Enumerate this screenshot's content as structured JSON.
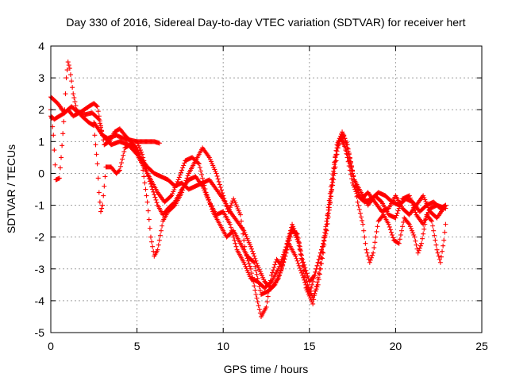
{
  "chart_data": {
    "type": "scatter",
    "title": "Day 330 of 2016, Sidereal Day-to-day VTEC variation (SDTVAR) for receiver hert",
    "xlabel": "GPS time / hours",
    "ylabel": "SDTVAR / TECUs",
    "xlim": [
      0,
      25
    ],
    "ylim": [
      -5,
      4
    ],
    "xticks": [
      0,
      5,
      10,
      15,
      20,
      25
    ],
    "yticks": [
      -5,
      -4,
      -3,
      -2,
      -1,
      0,
      1,
      2,
      3,
      4
    ],
    "grid": true,
    "marker": "+",
    "color": "#ff0000",
    "series": [
      {
        "name": "trace-1",
        "points": [
          [
            0.0,
            2.4
          ],
          [
            0.4,
            2.2
          ],
          [
            0.8,
            1.9
          ],
          [
            1.2,
            2.1
          ],
          [
            1.6,
            1.9
          ],
          [
            2.0,
            1.85
          ],
          [
            2.4,
            1.9
          ],
          [
            2.8,
            1.7
          ],
          [
            3.0,
            1.2
          ],
          [
            3.3,
            1.1
          ],
          [
            3.8,
            1.2
          ],
          [
            4.2,
            1.1
          ],
          [
            4.6,
            1.05
          ],
          [
            5.0,
            1.0
          ],
          [
            5.5,
            1.0
          ],
          [
            6.0,
            1.0
          ],
          [
            6.3,
            0.95
          ]
        ]
      },
      {
        "name": "trace-2",
        "points": [
          [
            0.0,
            1.8
          ],
          [
            0.2,
            1.7
          ],
          [
            0.5,
            1.8
          ],
          [
            0.8,
            1.9
          ],
          [
            1.0,
            2.0
          ],
          [
            1.3,
            1.8
          ],
          [
            1.8,
            1.95
          ],
          [
            2.2,
            2.1
          ],
          [
            2.5,
            2.2
          ],
          [
            2.7,
            2.1
          ],
          [
            2.9,
            1.5
          ],
          [
            3.1,
            0.9
          ],
          [
            3.4,
            1.0
          ],
          [
            3.7,
            1.3
          ],
          [
            4.0,
            1.4
          ],
          [
            4.3,
            1.2
          ],
          [
            4.8,
            0.9
          ],
          [
            5.2,
            0.5
          ],
          [
            5.6,
            0.2
          ],
          [
            6.0,
            0.0
          ],
          [
            6.4,
            -0.1
          ],
          [
            6.8,
            -0.2
          ],
          [
            7.2,
            -0.4
          ],
          [
            7.6,
            -0.3
          ],
          [
            8.0,
            -0.5
          ],
          [
            8.4,
            -0.4
          ],
          [
            8.8,
            -0.3
          ],
          [
            9.2,
            -0.2
          ],
          [
            9.6,
            -0.5
          ],
          [
            10.0,
            -0.8
          ],
          [
            10.4,
            -1.2
          ],
          [
            10.8,
            -1.5
          ],
          [
            11.2,
            -1.8
          ],
          [
            11.6,
            -2.3
          ],
          [
            12.0,
            -2.9
          ],
          [
            12.4,
            -3.4
          ],
          [
            12.8,
            -3.6
          ],
          [
            13.2,
            -3.3
          ],
          [
            13.6,
            -2.6
          ],
          [
            14.0,
            -1.8
          ],
          [
            14.3,
            -1.9
          ],
          [
            14.6,
            -2.7
          ],
          [
            15.0,
            -3.4
          ],
          [
            15.3,
            -3.2
          ],
          [
            15.6,
            -2.6
          ],
          [
            16.0,
            -1.8
          ],
          [
            16.3,
            -0.5
          ],
          [
            16.6,
            0.8
          ],
          [
            16.9,
            1.2
          ],
          [
            17.2,
            0.5
          ],
          [
            17.5,
            -0.3
          ],
          [
            17.8,
            -0.7
          ],
          [
            18.2,
            -0.9
          ],
          [
            18.6,
            -0.8
          ],
          [
            19.0,
            -0.6
          ],
          [
            19.4,
            -0.7
          ],
          [
            19.8,
            -0.9
          ],
          [
            20.2,
            -1.0
          ],
          [
            20.6,
            -0.8
          ],
          [
            21.0,
            -0.9
          ],
          [
            21.4,
            -1.2
          ],
          [
            21.8,
            -1.0
          ],
          [
            22.2,
            -0.9
          ],
          [
            22.6,
            -1.1
          ],
          [
            22.9,
            -1.0
          ]
        ]
      },
      {
        "name": "trace-3",
        "points": [
          [
            0.0,
            2.0
          ],
          [
            0.15,
            1.2
          ],
          [
            0.3,
            -0.2
          ],
          [
            0.5,
            -0.15
          ],
          [
            0.6,
            0.5
          ],
          [
            0.8,
            2.0
          ],
          [
            0.9,
            3.0
          ],
          [
            1.0,
            3.5
          ],
          [
            1.1,
            3.3
          ],
          [
            1.3,
            2.5
          ],
          [
            1.5,
            2.0
          ],
          [
            1.8,
            1.8
          ],
          [
            2.2,
            1.6
          ],
          [
            2.5,
            1.5
          ],
          [
            2.7,
            0.3
          ],
          [
            2.8,
            -0.6
          ],
          [
            2.9,
            -1.2
          ],
          [
            3.0,
            -1.0
          ],
          [
            3.2,
            0.2
          ],
          [
            3.5,
            0.2
          ],
          [
            3.8,
            0.0
          ],
          [
            4.0,
            0.1
          ],
          [
            4.3,
            0.8
          ],
          [
            4.6,
            0.9
          ],
          [
            5.0,
            0.8
          ],
          [
            5.3,
            0.3
          ],
          [
            5.6,
            -0.9
          ],
          [
            5.8,
            -2.0
          ],
          [
            6.0,
            -2.6
          ],
          [
            6.2,
            -2.4
          ],
          [
            6.5,
            -1.5
          ],
          [
            6.8,
            -1.2
          ],
          [
            7.2,
            -1.0
          ],
          [
            7.6,
            -0.6
          ],
          [
            8.0,
            0.0
          ],
          [
            8.4,
            0.4
          ],
          [
            8.8,
            0.8
          ],
          [
            9.2,
            0.5
          ],
          [
            9.6,
            0.0
          ],
          [
            10.0,
            -0.7
          ],
          [
            10.3,
            -1.2
          ],
          [
            10.6,
            -0.8
          ],
          [
            11.0,
            -1.3
          ],
          [
            11.3,
            -2.5
          ],
          [
            11.6,
            -3.0
          ],
          [
            11.9,
            -3.8
          ],
          [
            12.2,
            -4.5
          ],
          [
            12.5,
            -4.2
          ],
          [
            12.8,
            -3.2
          ],
          [
            13.1,
            -2.7
          ],
          [
            13.4,
            -2.9
          ],
          [
            13.7,
            -2.2
          ],
          [
            14.0,
            -1.6
          ],
          [
            14.3,
            -2.0
          ],
          [
            14.6,
            -2.8
          ],
          [
            14.9,
            -3.5
          ],
          [
            15.2,
            -3.9
          ],
          [
            15.5,
            -3.5
          ],
          [
            15.8,
            -2.5
          ],
          [
            16.0,
            -1.5
          ],
          [
            16.3,
            -0.2
          ],
          [
            16.6,
            0.9
          ],
          [
            16.9,
            1.3
          ],
          [
            17.2,
            0.9
          ],
          [
            17.5,
            0.1
          ],
          [
            17.8,
            -0.9
          ],
          [
            18.1,
            -1.6
          ],
          [
            18.3,
            -2.4
          ],
          [
            18.5,
            -2.8
          ],
          [
            18.7,
            -2.5
          ],
          [
            19.0,
            -1.5
          ],
          [
            19.3,
            -1.3
          ],
          [
            19.6,
            -1.6
          ],
          [
            19.9,
            -2.1
          ],
          [
            20.2,
            -2.2
          ],
          [
            20.5,
            -1.4
          ],
          [
            20.8,
            -1.6
          ],
          [
            21.1,
            -2.0
          ],
          [
            21.3,
            -2.5
          ],
          [
            21.5,
            -2.2
          ],
          [
            21.8,
            -1.3
          ],
          [
            22.1,
            -1.5
          ],
          [
            22.4,
            -2.4
          ],
          [
            22.6,
            -2.8
          ],
          [
            22.8,
            -2.1
          ],
          [
            22.9,
            -1.6
          ]
        ]
      },
      {
        "name": "trace-4",
        "points": [
          [
            2.5,
            1.6
          ],
          [
            3.0,
            1.2
          ],
          [
            3.5,
            0.9
          ],
          [
            4.0,
            1.0
          ],
          [
            4.5,
            0.9
          ],
          [
            5.0,
            0.6
          ],
          [
            5.4,
            0.2
          ],
          [
            5.8,
            -0.2
          ],
          [
            6.2,
            -0.6
          ],
          [
            6.6,
            -0.9
          ],
          [
            7.0,
            -0.7
          ],
          [
            7.4,
            -0.2
          ],
          [
            7.8,
            0.4
          ],
          [
            8.2,
            0.5
          ],
          [
            8.6,
            0.3
          ],
          [
            9.0,
            -0.6
          ],
          [
            9.4,
            -1.2
          ],
          [
            9.8,
            -1.6
          ],
          [
            10.2,
            -2.0
          ],
          [
            10.6,
            -1.8
          ],
          [
            11.0,
            -2.2
          ],
          [
            11.4,
            -2.6
          ],
          [
            11.8,
            -2.8
          ],
          [
            12.2,
            -3.8
          ],
          [
            12.6,
            -3.7
          ],
          [
            13.0,
            -3.5
          ],
          [
            13.4,
            -3.0
          ],
          [
            13.8,
            -2.2
          ],
          [
            14.2,
            -2.6
          ],
          [
            14.6,
            -3.2
          ],
          [
            15.0,
            -3.8
          ],
          [
            15.4,
            -3.0
          ],
          [
            15.8,
            -2.2
          ],
          [
            16.2,
            -0.8
          ],
          [
            16.5,
            0.5
          ],
          [
            16.8,
            1.1
          ],
          [
            17.1,
            0.8
          ],
          [
            17.4,
            0.2
          ],
          [
            17.7,
            -0.4
          ],
          [
            18.0,
            -0.8
          ],
          [
            18.4,
            -0.6
          ],
          [
            18.8,
            -0.9
          ],
          [
            19.2,
            -1.2
          ],
          [
            19.6,
            -1.1
          ],
          [
            20.0,
            -0.7
          ],
          [
            20.4,
            -1.1
          ],
          [
            20.8,
            -1.3
          ],
          [
            21.2,
            -1.0
          ],
          [
            21.6,
            -0.7
          ],
          [
            22.0,
            -1.2
          ],
          [
            22.4,
            -1.4
          ],
          [
            22.9,
            -1.0
          ]
        ]
      },
      {
        "name": "trace-5",
        "points": [
          [
            5.0,
            1.0
          ],
          [
            5.3,
            0.6
          ],
          [
            5.6,
            0.0
          ],
          [
            5.9,
            -0.5
          ],
          [
            6.2,
            -1.0
          ],
          [
            6.5,
            -1.3
          ],
          [
            6.8,
            -1.1
          ],
          [
            7.2,
            -0.9
          ],
          [
            7.6,
            -0.5
          ],
          [
            8.0,
            -0.2
          ],
          [
            8.4,
            -0.1
          ],
          [
            8.8,
            -0.4
          ],
          [
            9.2,
            -0.9
          ],
          [
            9.6,
            -1.3
          ],
          [
            10.0,
            -1.2
          ],
          [
            10.4,
            -1.6
          ],
          [
            10.8,
            -2.4
          ],
          [
            11.2,
            -2.8
          ],
          [
            11.6,
            -3.3
          ],
          [
            12.0,
            -3.4
          ],
          [
            12.4,
            -3.6
          ],
          [
            12.8,
            -3.4
          ],
          [
            13.2,
            -3.0
          ],
          [
            13.6,
            -2.4
          ],
          [
            14.0,
            -1.7
          ],
          [
            14.4,
            -2.2
          ],
          [
            14.8,
            -3.6
          ],
          [
            15.2,
            -4.1
          ],
          [
            15.6,
            -3.0
          ],
          [
            16.0,
            -1.6
          ],
          [
            16.4,
            -0.2
          ],
          [
            16.7,
            1.0
          ],
          [
            17.0,
            1.2
          ],
          [
            17.3,
            0.6
          ],
          [
            17.6,
            -0.2
          ],
          [
            18.0,
            -0.6
          ],
          [
            18.4,
            -1.0
          ],
          [
            18.8,
            -0.7
          ],
          [
            19.2,
            -0.9
          ],
          [
            19.6,
            -1.3
          ],
          [
            20.0,
            -1.4
          ],
          [
            20.4,
            -0.8
          ],
          [
            20.8,
            -0.7
          ],
          [
            21.2,
            -1.3
          ],
          [
            21.6,
            -1.6
          ],
          [
            22.0,
            -1.1
          ],
          [
            22.4,
            -1.0
          ],
          [
            22.9,
            -1.1
          ]
        ]
      }
    ]
  }
}
